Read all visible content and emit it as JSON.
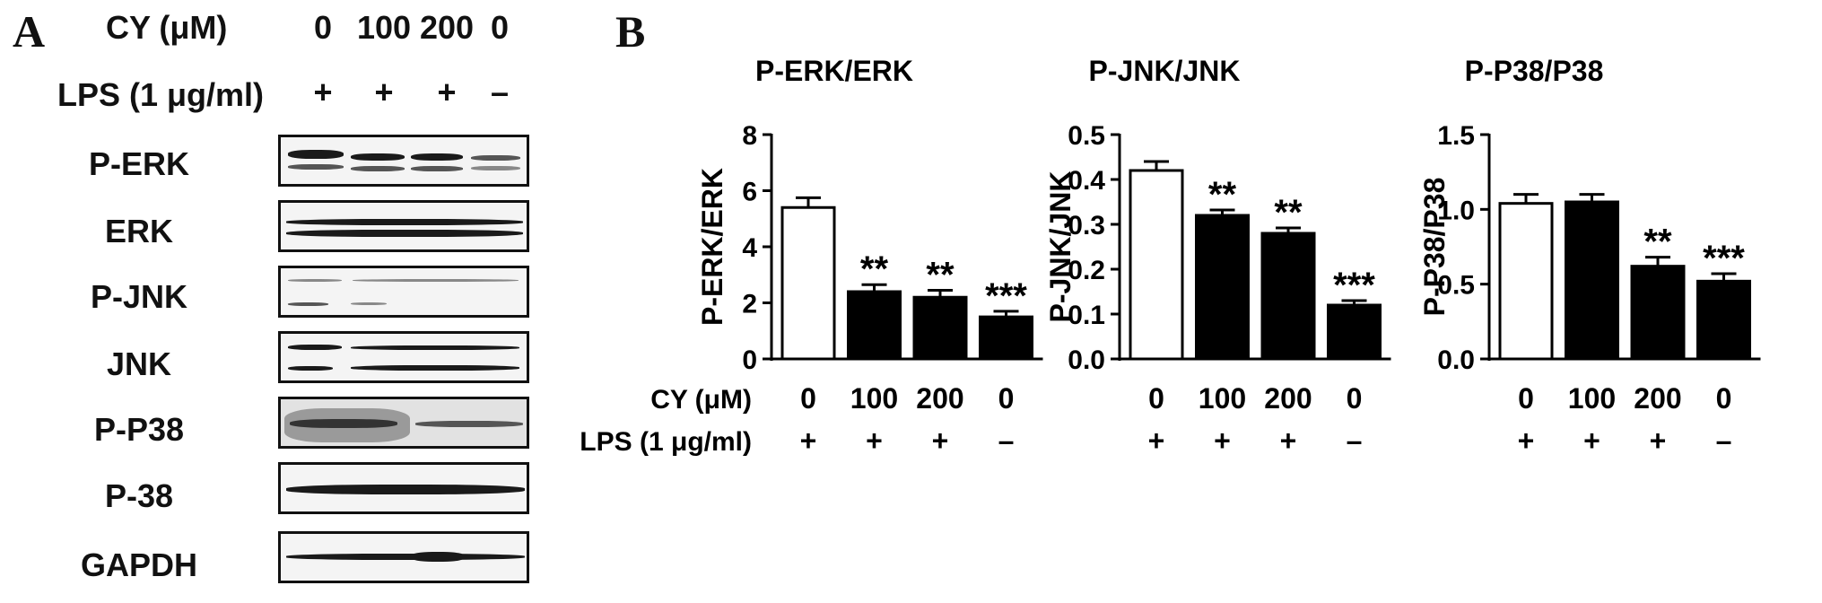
{
  "panel_a": {
    "letter": "A",
    "cy_label": "CY (μM)",
    "cy_values": [
      "0",
      "100",
      "200",
      "0"
    ],
    "lps_label": "LPS (1 μg/ml)",
    "lps_values": [
      "+",
      "+",
      "+",
      "–"
    ],
    "blots": [
      "P-ERK",
      "ERK",
      "P-JNK",
      "JNK",
      "P-P38",
      "P-38",
      "GAPDH"
    ]
  },
  "panel_b": {
    "letter": "B",
    "cy_label": "CY (μM)",
    "lps_label": "LPS (1 μg/ml)",
    "cy_values": [
      "0",
      "100",
      "200",
      "0"
    ],
    "lps_values": [
      "+",
      "+",
      "+",
      "–"
    ]
  },
  "chart_data": [
    {
      "type": "bar",
      "title": "P-ERK/ERK",
      "ylabel": "P-ERK/ERK",
      "categories": [
        "0",
        "100",
        "200",
        "0"
      ],
      "values": [
        5.4,
        2.4,
        2.2,
        1.5
      ],
      "errors": [
        0.35,
        0.25,
        0.25,
        0.2
      ],
      "significance": [
        "",
        "**",
        "**",
        "***"
      ],
      "bar_fill": [
        "#ffffff",
        "#000000",
        "#000000",
        "#000000"
      ],
      "ylim": [
        0,
        8
      ],
      "yticks": [
        0,
        2,
        4,
        6,
        8
      ],
      "ytick_labels": [
        "0",
        "2",
        "4",
        "6",
        "8"
      ]
    },
    {
      "type": "bar",
      "title": "P-JNK/JNK",
      "ylabel": "P-JNK/JNK",
      "categories": [
        "0",
        "100",
        "200",
        "0"
      ],
      "values": [
        0.42,
        0.32,
        0.28,
        0.12
      ],
      "errors": [
        0.02,
        0.012,
        0.012,
        0.01
      ],
      "significance": [
        "",
        "**",
        "**",
        "***"
      ],
      "bar_fill": [
        "#ffffff",
        "#000000",
        "#000000",
        "#000000"
      ],
      "ylim": [
        0,
        0.5
      ],
      "yticks": [
        0,
        0.1,
        0.2,
        0.3,
        0.4,
        0.5
      ],
      "ytick_labels": [
        "0.0",
        "0.1",
        "0.2",
        "0.3",
        "0.4",
        "0.5"
      ]
    },
    {
      "type": "bar",
      "title": "P-P38/P38",
      "ylabel": "P-P38/P38",
      "categories": [
        "0",
        "100",
        "200",
        "0"
      ],
      "values": [
        1.04,
        1.05,
        0.62,
        0.52
      ],
      "errors": [
        0.06,
        0.05,
        0.06,
        0.05
      ],
      "significance": [
        "",
        "",
        "**",
        "***"
      ],
      "bar_fill": [
        "#ffffff",
        "#000000",
        "#000000",
        "#000000"
      ],
      "ylim": [
        0,
        1.5
      ],
      "yticks": [
        0,
        0.5,
        1.0,
        1.5
      ],
      "ytick_labels": [
        "0.0",
        "0.5",
        "1.0",
        "1.5"
      ]
    }
  ]
}
